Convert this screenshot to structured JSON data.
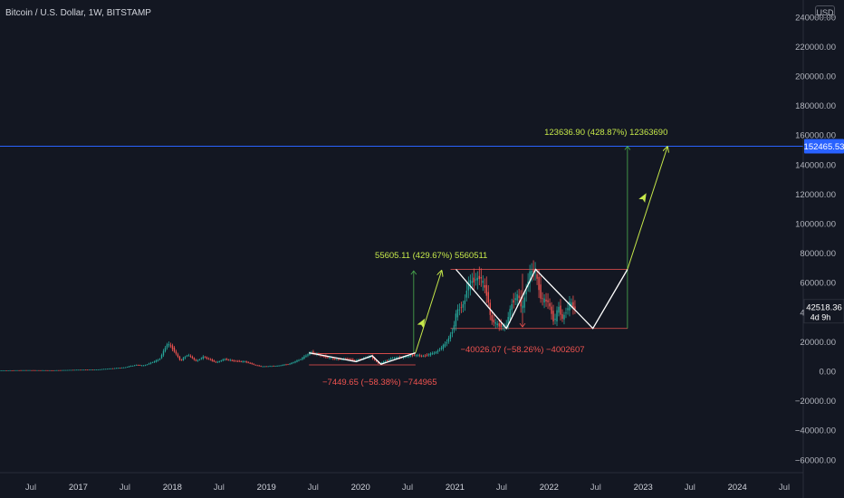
{
  "header": {
    "symbol_title": "Bitcoin / U.S. Dollar, 1W, BITSTAMP",
    "currency": "USD"
  },
  "colors": {
    "background": "#131722",
    "up_candle": "#26a69a",
    "down_candle": "#ef5350",
    "horizontal_line": "#2962ff",
    "annotation_up": "#c6e84a",
    "annotation_down": "#f05350",
    "pattern_line": "#ffffff",
    "axis_text": "#b2b5be"
  },
  "price_labels": {
    "horizontal_line": "152465.53",
    "last_price": "42518.36",
    "countdown": "4d 9h"
  },
  "annotations": {
    "up1": "55605.11 (429.67%) 5560511",
    "down1": "−7449.65 (−58.38%) −744965",
    "down2": "−40026.07 (−58.26%) −4002607",
    "up2": "123636.90 (428.87%) 12363690"
  },
  "chart_data": {
    "type": "candlestick",
    "title": "Bitcoin / U.S. Dollar, 1W, BITSTAMP",
    "xlabel": "",
    "ylabel": "USD",
    "ylim": [
      -70000,
      250000
    ],
    "grid": false,
    "y_ticks": [
      "240000.00",
      "220000.00",
      "200000.00",
      "180000.00",
      "160000.00",
      "140000.00",
      "120000.00",
      "100000.00",
      "80000.00",
      "60000.00",
      "40000.00",
      "20000.00",
      "0.00",
      "−20000.00",
      "−40000.00",
      "−60000.00"
    ],
    "y_tick_values": [
      240000,
      220000,
      200000,
      180000,
      160000,
      140000,
      120000,
      100000,
      80000,
      60000,
      40000,
      20000,
      0,
      -20000,
      -40000,
      -60000
    ],
    "x_ticks": [
      {
        "date": "2016-07-01",
        "label": "Jul"
      },
      {
        "date": "2017-01-01",
        "label": "2017"
      },
      {
        "date": "2017-07-01",
        "label": "Jul"
      },
      {
        "date": "2018-01-01",
        "label": "2018"
      },
      {
        "date": "2018-07-01",
        "label": "Jul"
      },
      {
        "date": "2019-01-01",
        "label": "2019"
      },
      {
        "date": "2019-07-01",
        "label": "Jul"
      },
      {
        "date": "2020-01-01",
        "label": "2020"
      },
      {
        "date": "2020-07-01",
        "label": "Jul"
      },
      {
        "date": "2021-01-01",
        "label": "2021"
      },
      {
        "date": "2021-07-01",
        "label": "Jul"
      },
      {
        "date": "2022-01-01",
        "label": "2022"
      },
      {
        "date": "2022-07-01",
        "label": "Jul"
      },
      {
        "date": "2023-01-01",
        "label": "2023"
      },
      {
        "date": "2023-07-01",
        "label": "Jul"
      },
      {
        "date": "2024-01-01",
        "label": "2024"
      },
      {
        "date": "2024-07-01",
        "label": "Jul"
      }
    ],
    "horizontal_line_value": 152465.53,
    "last_price": 42518.36,
    "price_path": [
      [
        "2016-01-01",
        430
      ],
      [
        "2016-06-15",
        700
      ],
      [
        "2016-10-01",
        610
      ],
      [
        "2017-01-01",
        990
      ],
      [
        "2017-03-15",
        1100
      ],
      [
        "2017-05-15",
        1900
      ],
      [
        "2017-07-01",
        2500
      ],
      [
        "2017-08-15",
        4200
      ],
      [
        "2017-09-15",
        3800
      ],
      [
        "2017-10-15",
        5800
      ],
      [
        "2017-11-15",
        8000
      ],
      [
        "2017-12-17",
        19000
      ],
      [
        "2018-01-07",
        15000
      ],
      [
        "2018-02-05",
        7000
      ],
      [
        "2018-03-05",
        11400
      ],
      [
        "2018-04-07",
        6800
      ],
      [
        "2018-05-05",
        9800
      ],
      [
        "2018-06-25",
        5900
      ],
      [
        "2018-07-25",
        8200
      ],
      [
        "2018-09-01",
        7000
      ],
      [
        "2018-10-15",
        6400
      ],
      [
        "2018-11-20",
        4300
      ],
      [
        "2018-12-15",
        3200
      ],
      [
        "2019-02-15",
        3600
      ],
      [
        "2019-04-05",
        5000
      ],
      [
        "2019-05-15",
        8000
      ],
      [
        "2019-06-26",
        12800
      ],
      [
        "2019-08-15",
        10000
      ],
      [
        "2019-10-01",
        8000
      ],
      [
        "2019-11-15",
        8500
      ],
      [
        "2019-12-15",
        7100
      ],
      [
        "2020-02-12",
        10300
      ],
      [
        "2020-03-15",
        5000
      ],
      [
        "2020-05-05",
        8900
      ],
      [
        "2020-06-15",
        9400
      ],
      [
        "2020-07-25",
        11000
      ],
      [
        "2020-09-05",
        10300
      ],
      [
        "2020-10-25",
        13000
      ],
      [
        "2020-12-01",
        19000
      ],
      [
        "2020-12-28",
        28000
      ],
      [
        "2021-01-10",
        40000
      ],
      [
        "2021-02-10",
        46000
      ],
      [
        "2021-02-21",
        58000
      ],
      [
        "2021-03-12",
        61000
      ],
      [
        "2021-04-14",
        64000
      ],
      [
        "2021-05-12",
        50000
      ],
      [
        "2021-05-23",
        35000
      ],
      [
        "2021-06-22",
        31000
      ],
      [
        "2021-07-20",
        30000
      ],
      [
        "2021-08-15",
        47000
      ],
      [
        "2021-09-07",
        52000
      ],
      [
        "2021-09-21",
        41000
      ],
      [
        "2021-10-20",
        66000
      ],
      [
        "2021-11-10",
        69000
      ],
      [
        "2021-12-05",
        49000
      ],
      [
        "2022-01-01",
        47000
      ],
      [
        "2022-01-24",
        33000
      ],
      [
        "2022-02-10",
        44000
      ],
      [
        "2022-02-24",
        35000
      ],
      [
        "2022-03-28",
        47000
      ],
      [
        "2022-04-10",
        42518
      ]
    ],
    "candle_start": "2016-01-01",
    "candle_end": "2022-04-10",
    "candle_interval_days": 7,
    "drawings": {
      "box1": {
        "x1": "2019-06-15",
        "x2": "2020-08-01",
        "y_top": 12000,
        "y_bottom": 4300
      },
      "zigzag1": [
        [
          "2019-06-15",
          12500
        ],
        [
          "2019-12-15",
          6500
        ],
        [
          "2020-02-15",
          10500
        ],
        [
          "2020-03-20",
          4800
        ],
        [
          "2020-08-01",
          12500
        ]
      ],
      "projection1": {
        "from": [
          "2020-08-01",
          12500
        ],
        "to": [
          "2020-11-10",
          68000
        ]
      },
      "measure1": {
        "x": "2020-07-25",
        "y_from": 12500,
        "y_to": 68000
      },
      "box2": {
        "x1": "2020-12-15",
        "x2": "2022-11-01",
        "y_top": 69000,
        "y_bottom": 29000
      },
      "zigzag2": [
        [
          "2021-01-05",
          69000
        ],
        [
          "2021-07-20",
          29000
        ],
        [
          "2021-11-10",
          69000
        ],
        [
          "2022-06-20",
          29000
        ],
        [
          "2022-11-01",
          69000
        ]
      ],
      "projection2": {
        "from": [
          "2022-11-01",
          69000
        ],
        "to": [
          "2023-04-05",
          152000
        ]
      },
      "measure2": {
        "x": "2022-11-01",
        "y_from": 29000,
        "y_to": 152465.53
      },
      "drop_measure": {
        "x": "2021-09-20",
        "y_from": 66000,
        "y_to": 30000
      },
      "arrow_icon_1": [
        "2020-08-25",
        32000
      ],
      "arrow_icon_2": [
        "2023-01-01",
        117000
      ]
    }
  }
}
